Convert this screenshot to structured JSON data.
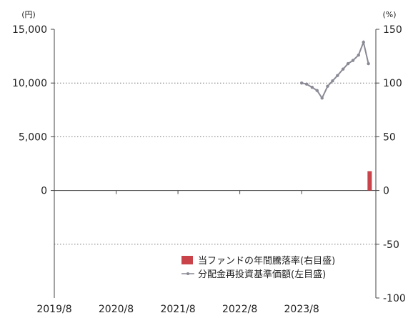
{
  "chart_data": {
    "type": "line",
    "left_axis": {
      "unit": "(円)",
      "ylim": [
        -10000,
        15000
      ],
      "ticks": [
        0,
        5000,
        10000,
        15000
      ],
      "tick_labels": [
        "0",
        "5,000",
        "10,000",
        "15,000"
      ]
    },
    "right_axis": {
      "unit": "(%)",
      "ylim": [
        -100,
        150
      ],
      "ticks": [
        -100,
        -50,
        0,
        50,
        100,
        150
      ],
      "tick_labels": [
        "-100",
        "-50",
        "0",
        "50",
        "100",
        "150"
      ]
    },
    "x_axis": {
      "categories": [
        "2019/8",
        "2020/8",
        "2021/8",
        "2022/8",
        "2023/8"
      ],
      "xlim": [
        0,
        5.2
      ]
    },
    "grid": true,
    "legend_position": "bottom-right",
    "series": [
      {
        "name": "当ファンドの年間騰落率(右目盛)",
        "type": "bar",
        "axis": "right",
        "color": "#c8434a",
        "x": [
          5.1
        ],
        "values": [
          18
        ]
      },
      {
        "name": "分配金再投資基準価額(左目盛)",
        "type": "line",
        "axis": "left",
        "color": "#8a8a96",
        "x": [
          4.0,
          4.08,
          4.17,
          4.25,
          4.33,
          4.42,
          4.5,
          4.58,
          4.67,
          4.75,
          4.83,
          4.92,
          5.0,
          5.08
        ],
        "values": [
          10000,
          9900,
          9600,
          9300,
          8600,
          9700,
          10200,
          10700,
          11300,
          11800,
          12100,
          12600,
          13800,
          11800
        ]
      }
    ]
  }
}
